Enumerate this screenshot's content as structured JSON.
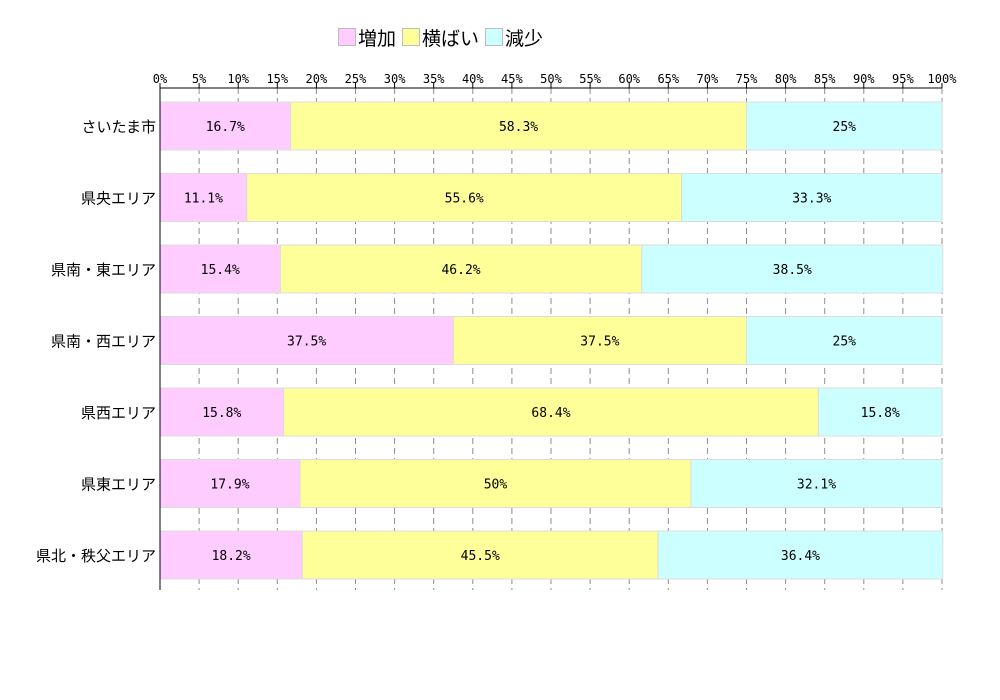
{
  "chart_data": {
    "type": "bar",
    "orientation": "horizontal",
    "stacked": true,
    "percent_stacked": true,
    "categories": [
      "さいたま市",
      "県央エリア",
      "県南・東エリア",
      "県南・西エリア",
      "県西エリア",
      "県東エリア",
      "県北・秩父エリア"
    ],
    "series": [
      {
        "name": "増加",
        "color": "#ffccff",
        "values": [
          16.7,
          11.1,
          15.4,
          37.5,
          15.8,
          17.9,
          18.2
        ],
        "labels": [
          "16.7%",
          "11.1%",
          "15.4%",
          "37.5%",
          "15.8%",
          "17.9%",
          "18.2%"
        ]
      },
      {
        "name": "横ばい",
        "color": "#ffff99",
        "values": [
          58.3,
          55.6,
          46.2,
          37.5,
          68.4,
          50,
          45.5
        ],
        "labels": [
          "58.3%",
          "55.6%",
          "46.2%",
          "37.5%",
          "68.4%",
          "50%",
          "45.5%"
        ]
      },
      {
        "name": "減少",
        "color": "#ccffff",
        "values": [
          25,
          33.3,
          38.5,
          25,
          15.8,
          32.1,
          36.4
        ],
        "labels": [
          "25%",
          "33.3%",
          "38.5%",
          "25%",
          "15.8%",
          "32.1%",
          "36.4%"
        ]
      }
    ],
    "xlim": [
      0,
      100
    ],
    "xticks": [
      0,
      5,
      10,
      15,
      20,
      25,
      30,
      35,
      40,
      45,
      50,
      55,
      60,
      65,
      70,
      75,
      80,
      85,
      90,
      95,
      100
    ],
    "xtick_labels": [
      "0%",
      "5%",
      "10%",
      "15%",
      "20%",
      "25%",
      "30%",
      "35%",
      "40%",
      "45%",
      "50%",
      "55%",
      "60%",
      "65%",
      "70%",
      "75%",
      "80%",
      "85%",
      "90%",
      "95%",
      "100%"
    ],
    "grid": "vertical dashed",
    "legend_position": "top",
    "x_axis_position": "top"
  }
}
